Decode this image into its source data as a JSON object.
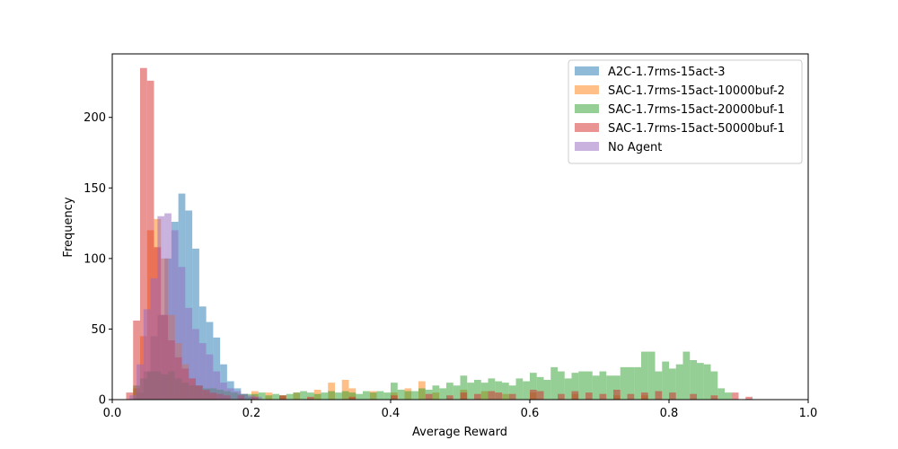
{
  "chart_data": {
    "type": "histogram",
    "xlabel": "Average Reward",
    "ylabel": "Frequency",
    "xlim": [
      0.0,
      1.0
    ],
    "ylim": [
      0,
      245
    ],
    "x_ticks": [
      "0.0",
      "0.2",
      "0.4",
      "0.6",
      "0.8",
      "1.0"
    ],
    "y_ticks": [
      "0",
      "50",
      "100",
      "150",
      "200"
    ],
    "legend_position": "top-right",
    "series": [
      {
        "name": "A2C-1.7rms-15act-3",
        "color": "#1f77b4",
        "bins": [
          [
            0.035,
            0.045,
            5
          ],
          [
            0.045,
            0.055,
            20
          ],
          [
            0.055,
            0.065,
            45
          ],
          [
            0.065,
            0.075,
            60
          ],
          [
            0.075,
            0.085,
            100
          ],
          [
            0.085,
            0.095,
            126
          ],
          [
            0.095,
            0.105,
            146
          ],
          [
            0.105,
            0.115,
            134
          ],
          [
            0.115,
            0.125,
            107
          ],
          [
            0.125,
            0.135,
            66
          ],
          [
            0.135,
            0.145,
            55
          ],
          [
            0.145,
            0.155,
            44
          ],
          [
            0.155,
            0.165,
            25
          ],
          [
            0.165,
            0.175,
            13
          ],
          [
            0.175,
            0.185,
            8
          ],
          [
            0.185,
            0.195,
            4
          ],
          [
            0.195,
            0.205,
            2
          ]
        ]
      },
      {
        "name": "SAC-1.7rms-15act-10000buf-2",
        "color": "#ff7f0e",
        "bins": [
          [
            0.03,
            0.04,
            8
          ],
          [
            0.04,
            0.05,
            45
          ],
          [
            0.05,
            0.06,
            120
          ],
          [
            0.06,
            0.07,
            128
          ],
          [
            0.07,
            0.08,
            100
          ],
          [
            0.08,
            0.09,
            60
          ],
          [
            0.09,
            0.1,
            40
          ],
          [
            0.1,
            0.11,
            25
          ],
          [
            0.11,
            0.12,
            15
          ],
          [
            0.12,
            0.13,
            10
          ],
          [
            0.13,
            0.14,
            6
          ],
          [
            0.14,
            0.15,
            4
          ],
          [
            0.2,
            0.21,
            6
          ],
          [
            0.22,
            0.23,
            5
          ],
          [
            0.24,
            0.25,
            3
          ],
          [
            0.26,
            0.27,
            5
          ],
          [
            0.29,
            0.3,
            7
          ],
          [
            0.31,
            0.32,
            12
          ],
          [
            0.33,
            0.34,
            14
          ],
          [
            0.34,
            0.35,
            8
          ],
          [
            0.37,
            0.38,
            6
          ],
          [
            0.4,
            0.41,
            5
          ],
          [
            0.42,
            0.43,
            8
          ],
          [
            0.44,
            0.45,
            13
          ],
          [
            0.46,
            0.47,
            5
          ],
          [
            0.5,
            0.51,
            7
          ],
          [
            0.53,
            0.54,
            6
          ],
          [
            0.56,
            0.57,
            4
          ],
          [
            0.6,
            0.61,
            5
          ],
          [
            0.66,
            0.67,
            4
          ],
          [
            0.72,
            0.73,
            3
          ],
          [
            0.76,
            0.77,
            3
          ]
        ]
      },
      {
        "name": "SAC-1.7rms-15act-20000buf-1",
        "color": "#2ca02c",
        "bins": [
          [
            0.03,
            0.04,
            10
          ],
          [
            0.04,
            0.05,
            15
          ],
          [
            0.05,
            0.06,
            20
          ],
          [
            0.06,
            0.07,
            20
          ],
          [
            0.07,
            0.08,
            18
          ],
          [
            0.08,
            0.09,
            20
          ],
          [
            0.09,
            0.1,
            15
          ],
          [
            0.1,
            0.11,
            12
          ],
          [
            0.11,
            0.12,
            10
          ],
          [
            0.12,
            0.13,
            10
          ],
          [
            0.13,
            0.14,
            8
          ],
          [
            0.14,
            0.15,
            8
          ],
          [
            0.15,
            0.16,
            7
          ],
          [
            0.16,
            0.17,
            6
          ],
          [
            0.17,
            0.18,
            5
          ],
          [
            0.18,
            0.19,
            4
          ],
          [
            0.19,
            0.2,
            4
          ],
          [
            0.2,
            0.21,
            4
          ],
          [
            0.21,
            0.22,
            5
          ],
          [
            0.22,
            0.23,
            3
          ],
          [
            0.23,
            0.24,
            4
          ],
          [
            0.24,
            0.25,
            3
          ],
          [
            0.25,
            0.26,
            4
          ],
          [
            0.26,
            0.27,
            5
          ],
          [
            0.27,
            0.28,
            6
          ],
          [
            0.28,
            0.29,
            5
          ],
          [
            0.29,
            0.3,
            4
          ],
          [
            0.3,
            0.31,
            5
          ],
          [
            0.31,
            0.32,
            6
          ],
          [
            0.32,
            0.33,
            5
          ],
          [
            0.33,
            0.34,
            6
          ],
          [
            0.34,
            0.35,
            5
          ],
          [
            0.35,
            0.36,
            4
          ],
          [
            0.36,
            0.37,
            6
          ],
          [
            0.37,
            0.38,
            5
          ],
          [
            0.38,
            0.39,
            6
          ],
          [
            0.39,
            0.4,
            5
          ],
          [
            0.4,
            0.41,
            12
          ],
          [
            0.41,
            0.42,
            7
          ],
          [
            0.42,
            0.43,
            6
          ],
          [
            0.43,
            0.44,
            6
          ],
          [
            0.44,
            0.45,
            8
          ],
          [
            0.45,
            0.46,
            7
          ],
          [
            0.46,
            0.47,
            10
          ],
          [
            0.47,
            0.48,
            8
          ],
          [
            0.48,
            0.49,
            12
          ],
          [
            0.49,
            0.5,
            10
          ],
          [
            0.5,
            0.51,
            17
          ],
          [
            0.51,
            0.52,
            12
          ],
          [
            0.52,
            0.53,
            14
          ],
          [
            0.53,
            0.54,
            12
          ],
          [
            0.54,
            0.55,
            15
          ],
          [
            0.55,
            0.56,
            13
          ],
          [
            0.56,
            0.57,
            12
          ],
          [
            0.57,
            0.58,
            10
          ],
          [
            0.58,
            0.59,
            15
          ],
          [
            0.59,
            0.6,
            13
          ],
          [
            0.6,
            0.61,
            19
          ],
          [
            0.61,
            0.62,
            16
          ],
          [
            0.62,
            0.63,
            14
          ],
          [
            0.63,
            0.64,
            23
          ],
          [
            0.64,
            0.65,
            20
          ],
          [
            0.65,
            0.66,
            15
          ],
          [
            0.66,
            0.67,
            19
          ],
          [
            0.67,
            0.68,
            20
          ],
          [
            0.68,
            0.69,
            20
          ],
          [
            0.69,
            0.7,
            17
          ],
          [
            0.7,
            0.71,
            20
          ],
          [
            0.71,
            0.72,
            17
          ],
          [
            0.72,
            0.73,
            17
          ],
          [
            0.73,
            0.74,
            23
          ],
          [
            0.74,
            0.75,
            23
          ],
          [
            0.75,
            0.76,
            23
          ],
          [
            0.76,
            0.77,
            34
          ],
          [
            0.77,
            0.78,
            34
          ],
          [
            0.78,
            0.79,
            20
          ],
          [
            0.79,
            0.8,
            27
          ],
          [
            0.8,
            0.81,
            22
          ],
          [
            0.81,
            0.82,
            25
          ],
          [
            0.82,
            0.83,
            34
          ],
          [
            0.83,
            0.84,
            28
          ],
          [
            0.84,
            0.85,
            26
          ],
          [
            0.85,
            0.86,
            25
          ],
          [
            0.86,
            0.87,
            20
          ],
          [
            0.87,
            0.88,
            8
          ],
          [
            0.88,
            0.89,
            5
          ]
        ]
      },
      {
        "name": "SAC-1.7rms-15act-50000buf-1",
        "color": "#d62728",
        "bins": [
          [
            0.02,
            0.03,
            5
          ],
          [
            0.03,
            0.04,
            56
          ],
          [
            0.04,
            0.05,
            235
          ],
          [
            0.05,
            0.06,
            226
          ],
          [
            0.06,
            0.07,
            108
          ],
          [
            0.07,
            0.08,
            60
          ],
          [
            0.08,
            0.09,
            42
          ],
          [
            0.09,
            0.1,
            30
          ],
          [
            0.1,
            0.11,
            22
          ],
          [
            0.11,
            0.12,
            15
          ],
          [
            0.12,
            0.13,
            10
          ],
          [
            0.13,
            0.14,
            7
          ],
          [
            0.14,
            0.15,
            5
          ],
          [
            0.15,
            0.16,
            4
          ],
          [
            0.16,
            0.17,
            3
          ],
          [
            0.18,
            0.19,
            3
          ],
          [
            0.2,
            0.21,
            2
          ],
          [
            0.24,
            0.25,
            3
          ],
          [
            0.28,
            0.29,
            2
          ],
          [
            0.34,
            0.35,
            2
          ],
          [
            0.4,
            0.41,
            3
          ],
          [
            0.45,
            0.46,
            4
          ],
          [
            0.48,
            0.49,
            3
          ],
          [
            0.5,
            0.51,
            5
          ],
          [
            0.52,
            0.53,
            4
          ],
          [
            0.54,
            0.55,
            6
          ],
          [
            0.55,
            0.56,
            5
          ],
          [
            0.57,
            0.58,
            4
          ],
          [
            0.6,
            0.61,
            7
          ],
          [
            0.61,
            0.62,
            6
          ],
          [
            0.64,
            0.65,
            4
          ],
          [
            0.66,
            0.67,
            6
          ],
          [
            0.68,
            0.69,
            5
          ],
          [
            0.7,
            0.71,
            4
          ],
          [
            0.72,
            0.73,
            7
          ],
          [
            0.74,
            0.75,
            4
          ],
          [
            0.76,
            0.77,
            5
          ],
          [
            0.78,
            0.79,
            6
          ],
          [
            0.8,
            0.81,
            5
          ],
          [
            0.83,
            0.84,
            4
          ],
          [
            0.86,
            0.87,
            3
          ],
          [
            0.89,
            0.9,
            5
          ],
          [
            0.91,
            0.92,
            2
          ]
        ]
      },
      {
        "name": "No Agent",
        "color": "#9467bd",
        "bins": [
          [
            0.025,
            0.035,
            3
          ],
          [
            0.035,
            0.045,
            25
          ],
          [
            0.045,
            0.055,
            64
          ],
          [
            0.055,
            0.065,
            86
          ],
          [
            0.065,
            0.075,
            130
          ],
          [
            0.075,
            0.085,
            132
          ],
          [
            0.085,
            0.095,
            120
          ],
          [
            0.095,
            0.105,
            94
          ],
          [
            0.105,
            0.115,
            65
          ],
          [
            0.115,
            0.125,
            50
          ],
          [
            0.125,
            0.135,
            40
          ],
          [
            0.135,
            0.145,
            32
          ],
          [
            0.145,
            0.155,
            20
          ],
          [
            0.155,
            0.165,
            12
          ],
          [
            0.165,
            0.175,
            8
          ],
          [
            0.175,
            0.185,
            6
          ],
          [
            0.185,
            0.195,
            4
          ],
          [
            0.195,
            0.205,
            3
          ],
          [
            0.205,
            0.215,
            2
          ]
        ]
      }
    ]
  }
}
